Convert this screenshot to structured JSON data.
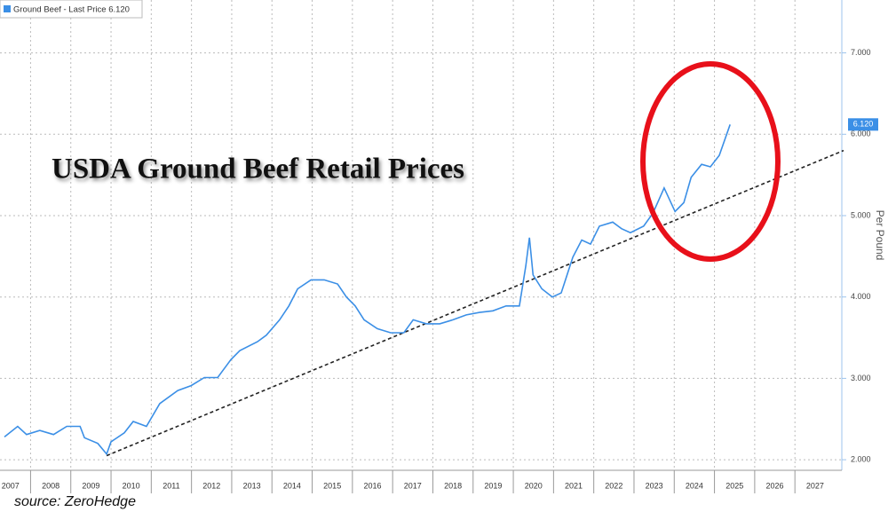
{
  "chart_data": {
    "type": "line",
    "title": "USDA Ground Beef Retail Prices",
    "y_axis_label": "Per Pound",
    "source": "source: ZeroHedge",
    "last_value_label": "6.120",
    "grid": true,
    "xlim": [
      2007.24,
      2028.21
    ],
    "ylim": [
      1.87,
      7.65
    ],
    "xticks": [
      {
        "value": 2007.5,
        "label": "2007"
      },
      {
        "value": 2008.5,
        "label": "2008"
      },
      {
        "value": 2009.5,
        "label": "2009"
      },
      {
        "value": 2010.5,
        "label": "2010"
      },
      {
        "value": 2011.5,
        "label": "2011"
      },
      {
        "value": 2012.5,
        "label": "2012"
      },
      {
        "value": 2013.5,
        "label": "2013"
      },
      {
        "value": 2014.5,
        "label": "2014"
      },
      {
        "value": 2015.5,
        "label": "2015"
      },
      {
        "value": 2016.5,
        "label": "2016"
      },
      {
        "value": 2017.5,
        "label": "2017"
      },
      {
        "value": 2018.5,
        "label": "2018"
      },
      {
        "value": 2019.5,
        "label": "2019"
      },
      {
        "value": 2020.5,
        "label": "2020"
      },
      {
        "value": 2021.5,
        "label": "2021"
      },
      {
        "value": 2022.5,
        "label": "2022"
      },
      {
        "value": 2023.5,
        "label": "2023"
      },
      {
        "value": 2024.5,
        "label": "2024"
      },
      {
        "value": 2025.5,
        "label": "2025"
      },
      {
        "value": 2026.5,
        "label": "2026"
      },
      {
        "value": 2027.5,
        "label": "2027"
      }
    ],
    "yticks": [
      {
        "value": 2,
        "label": "2.000"
      },
      {
        "value": 3,
        "label": "3.000"
      },
      {
        "value": 4,
        "label": "4.000"
      },
      {
        "value": 5,
        "label": "5.000"
      },
      {
        "value": 6,
        "label": "6.000"
      },
      {
        "value": 7,
        "label": "7.000"
      }
    ],
    "series": [
      {
        "name": "Ground Beef - Last Price 6.120",
        "color": "#3b8fe6",
        "x": [
          2007.35,
          2007.68,
          2007.9,
          2008.23,
          2008.57,
          2008.9,
          2009.23,
          2009.34,
          2009.67,
          2009.89,
          2010.0,
          2010.33,
          2010.55,
          2010.88,
          2011.21,
          2011.66,
          2011.99,
          2012.32,
          2012.65,
          2012.98,
          2013.2,
          2013.64,
          2013.86,
          2014.19,
          2014.42,
          2014.64,
          2014.97,
          2015.3,
          2015.63,
          2015.85,
          2016.07,
          2016.29,
          2016.62,
          2016.95,
          2017.28,
          2017.51,
          2017.84,
          2018.17,
          2018.5,
          2018.83,
          2019.16,
          2019.49,
          2019.82,
          2020.15,
          2020.31,
          2020.4,
          2020.49,
          2020.71,
          2020.97,
          2021.19,
          2021.48,
          2021.7,
          2021.92,
          2022.14,
          2022.47,
          2022.69,
          2022.91,
          2023.24,
          2023.47,
          2023.75,
          2024.02,
          2024.24,
          2024.42,
          2024.68,
          2024.9,
          2025.12,
          2025.39
        ],
        "values": [
          2.28,
          2.41,
          2.31,
          2.36,
          2.31,
          2.41,
          2.41,
          2.27,
          2.2,
          2.07,
          2.22,
          2.33,
          2.47,
          2.41,
          2.69,
          2.85,
          2.91,
          3.01,
          3.01,
          3.23,
          3.34,
          3.45,
          3.53,
          3.72,
          3.89,
          4.1,
          4.21,
          4.21,
          4.16,
          4.0,
          3.89,
          3.72,
          3.61,
          3.56,
          3.56,
          3.72,
          3.67,
          3.67,
          3.72,
          3.78,
          3.81,
          3.83,
          3.89,
          3.89,
          4.38,
          4.73,
          4.27,
          4.1,
          4.0,
          4.05,
          4.49,
          4.7,
          4.65,
          4.87,
          4.92,
          4.84,
          4.79,
          4.87,
          5.03,
          5.34,
          5.05,
          5.16,
          5.47,
          5.63,
          5.6,
          5.74,
          6.12
        ]
      }
    ],
    "trend": {
      "color": "#222222",
      "x": [
        2009.89,
        2028.21
      ],
      "values": [
        2.05,
        5.8
      ]
    }
  }
}
